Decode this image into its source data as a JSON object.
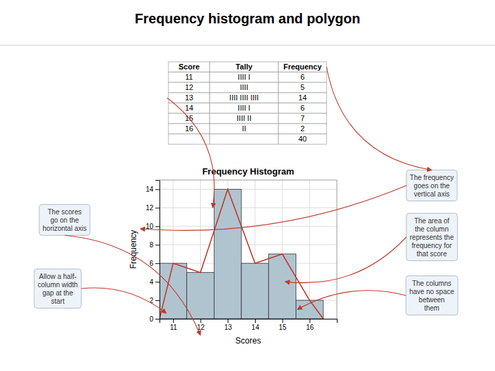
{
  "title": "Frequency histogram and polygon",
  "chart_data": [
    {
      "type": "table",
      "columns": [
        "Score",
        "Tally",
        "Frequency"
      ],
      "rows": [
        [
          11,
          "IIII I",
          6
        ],
        [
          12,
          "IIII",
          5
        ],
        [
          13,
          "IIII IIII IIII",
          14
        ],
        [
          14,
          "IIII I",
          6
        ],
        [
          15,
          "IIII II",
          7
        ],
        [
          16,
          "II",
          2
        ]
      ],
      "total": 40
    },
    {
      "type": "bar",
      "title": "Frequency Histogram",
      "xlabel": "Scores",
      "ylabel": "Frequency",
      "series": [
        {
          "type": "bar",
          "color": "#b0c4d0",
          "x": [
            11,
            12,
            13,
            14,
            15,
            16
          ],
          "values": [
            6,
            5,
            14,
            6,
            7,
            2
          ]
        },
        {
          "type": "line",
          "color": "#c0392b",
          "x": [
            10.5,
            11,
            12,
            13,
            14,
            15,
            16,
            16.5
          ],
          "values": [
            0,
            6,
            5,
            14,
            6,
            7,
            2,
            0
          ]
        }
      ],
      "xlim": [
        10.5,
        17
      ],
      "xticks": [
        11,
        12,
        13,
        14,
        15,
        16
      ],
      "ylim": [
        0,
        15
      ],
      "yticks": [
        0,
        2,
        4,
        6,
        8,
        10,
        12,
        14
      ],
      "grid": true,
      "annotations": [
        "The scores\ngo on the\nhorizontal axis",
        "The frequency\ngoes on the\nvertical axis",
        "Allow a half-\ncolumn width\ngap at the\nstart",
        "The area of\nthe column\nrepresents the\nfrequency for\nthat score",
        "The columns\nhave no space\nbetween\nthem"
      ]
    }
  ]
}
